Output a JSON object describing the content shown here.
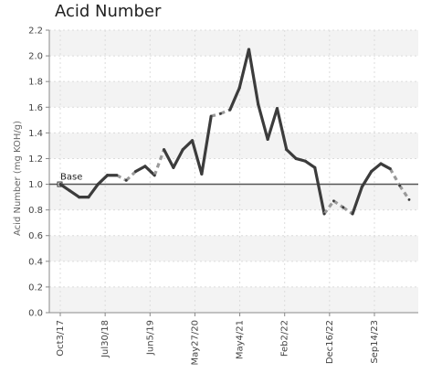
{
  "chart_data": {
    "type": "line",
    "title": "Acid Number",
    "ylabel": "Acid Number (mg KOH/g)",
    "xlabel": "",
    "ylim": [
      0,
      2.2
    ],
    "yticks": [
      "0.0",
      "0.2",
      "0.4",
      "0.6",
      "0.8",
      "1.0",
      "1.2",
      "1.4",
      "1.6",
      "1.8",
      "2.0",
      "2.2"
    ],
    "xticks": [
      "Oct3/17",
      "Jul30/18",
      "Jun5/19",
      "May27/20",
      "May4/21",
      "Feb2/22",
      "Dec16/22",
      "Sep14/23"
    ],
    "grid": true,
    "base": {
      "label": "Base",
      "value": 1.0
    },
    "series": [
      {
        "values": [
          1.0,
          0.95,
          0.9,
          0.9,
          1.0,
          1.07,
          1.07,
          1.03,
          1.1,
          1.14,
          1.07,
          1.27,
          1.13,
          1.27,
          1.34,
          1.08,
          1.53,
          1.55,
          1.58,
          1.75,
          2.05,
          1.62,
          1.35,
          1.59,
          1.27,
          1.2,
          1.18,
          1.13,
          0.77,
          0.87,
          0.82,
          0.77,
          0.98,
          1.1,
          1.16,
          1.12,
          0.99,
          0.88
        ],
        "segment_style": [
          "solid",
          "solid",
          "solid",
          "solid",
          "solid",
          "solid",
          "dashed",
          "dashed",
          "solid",
          "solid",
          "dashed",
          "solid",
          "solid",
          "solid",
          "solid",
          "solid",
          "dashed",
          "dashed",
          "solid",
          "solid",
          "solid",
          "solid",
          "solid",
          "solid",
          "solid",
          "solid",
          "solid",
          "solid",
          "dashed",
          "dashed",
          "dashed",
          "solid",
          "solid",
          "solid",
          "solid",
          "dashed",
          "dashed"
        ]
      }
    ]
  }
}
